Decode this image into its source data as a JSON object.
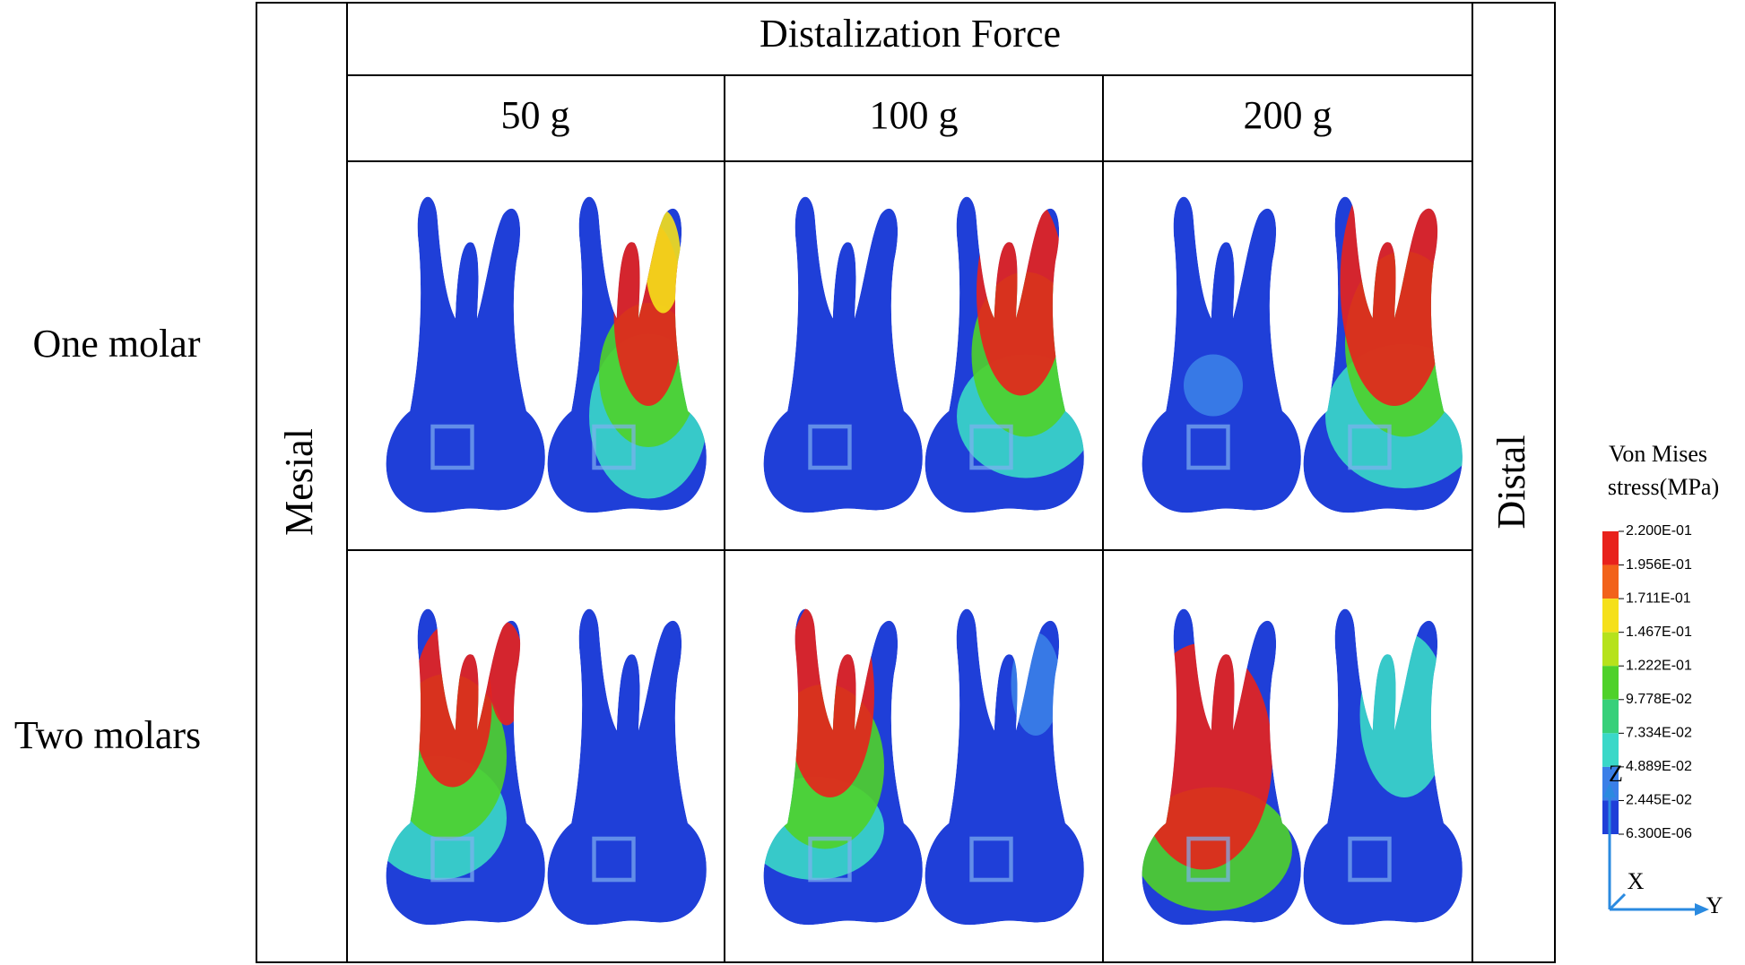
{
  "header": {
    "title": "Distalization Force",
    "columns": [
      "50 g",
      "100 g",
      "200 g"
    ]
  },
  "rows": [
    "One molar",
    "Two molars"
  ],
  "side_labels": {
    "left": "Mesial",
    "right": "Distal"
  },
  "legend": {
    "title": [
      "Von Mises",
      "stress(MPa)"
    ],
    "labels": [
      "2.200E-01",
      "1.956E-01",
      "1.711E-01",
      "1.467E-01",
      "1.222E-01",
      "9.778E-02",
      "7.334E-02",
      "4.889E-02",
      "2.445E-02",
      "6.300E-06"
    ],
    "colors": [
      "#e8221c",
      "#f2621a",
      "#f5e01a",
      "#b6e21c",
      "#4fd12a",
      "#37d07a",
      "#3ad8c8",
      "#3a7fe8",
      "#1f3fd8"
    ]
  },
  "axes": {
    "z": "Z",
    "x": "X",
    "y": "Y"
  }
}
